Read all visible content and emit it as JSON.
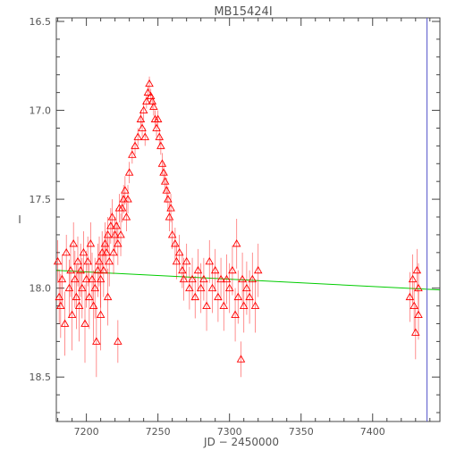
{
  "chart_data": {
    "type": "scatter",
    "title": "MB15424I",
    "xlabel": "JD − 2450000",
    "ylabel": "I",
    "xlim": [
      7179,
      7447
    ],
    "ylim": [
      18.75,
      16.48
    ],
    "y_inverted": true,
    "x_ticks": [
      "7200",
      "7250",
      "7300",
      "7350",
      "7400"
    ],
    "x_tick_values": [
      7200,
      7250,
      7300,
      7350,
      7400
    ],
    "y_ticks": [
      "16.5",
      "17.0",
      "17.5",
      "18.0",
      "18.5"
    ],
    "y_tick_values": [
      16.5,
      17.0,
      17.5,
      18.0,
      18.5
    ],
    "grid": false,
    "colors": {
      "points": "#ff0000",
      "baseline": "#00cc00",
      "vline": "#5555cc",
      "axes": "#444444"
    },
    "baseline": {
      "x": [
        7179,
        7447
      ],
      "y": [
        17.9,
        18.01
      ]
    },
    "vline_x": 7438,
    "points": [
      {
        "x": 7180,
        "y": 17.85,
        "e": 0.12
      },
      {
        "x": 7181,
        "y": 18.05,
        "e": 0.15
      },
      {
        "x": 7182,
        "y": 18.1,
        "e": 0.18
      },
      {
        "x": 7183,
        "y": 17.95,
        "e": 0.14
      },
      {
        "x": 7185,
        "y": 18.2,
        "e": 0.18
      },
      {
        "x": 7186,
        "y": 17.8,
        "e": 0.1
      },
      {
        "x": 7188,
        "y": 18.0,
        "e": 0.16
      },
      {
        "x": 7189,
        "y": 17.9,
        "e": 0.15
      },
      {
        "x": 7190,
        "y": 18.15,
        "e": 0.2
      },
      {
        "x": 7191,
        "y": 17.75,
        "e": 0.12
      },
      {
        "x": 7192,
        "y": 17.95,
        "e": 0.16
      },
      {
        "x": 7193,
        "y": 18.05,
        "e": 0.18
      },
      {
        "x": 7194,
        "y": 17.85,
        "e": 0.14
      },
      {
        "x": 7195,
        "y": 18.1,
        "e": 0.2
      },
      {
        "x": 7196,
        "y": 17.9,
        "e": 0.15
      },
      {
        "x": 7197,
        "y": 18.0,
        "e": 0.17
      },
      {
        "x": 7198,
        "y": 17.8,
        "e": 0.12
      },
      {
        "x": 7199,
        "y": 18.2,
        "e": 0.22
      },
      {
        "x": 7200,
        "y": 17.95,
        "e": 0.16
      },
      {
        "x": 7201,
        "y": 17.85,
        "e": 0.14
      },
      {
        "x": 7202,
        "y": 18.05,
        "e": 0.18
      },
      {
        "x": 7203,
        "y": 17.75,
        "e": 0.12
      },
      {
        "x": 7204,
        "y": 17.95,
        "e": 0.15
      },
      {
        "x": 7205,
        "y": 18.1,
        "e": 0.2
      },
      {
        "x": 7206,
        "y": 18.0,
        "e": 0.17
      },
      {
        "x": 7207,
        "y": 18.3,
        "e": 0.2
      },
      {
        "x": 7208,
        "y": 17.9,
        "e": 0.15
      },
      {
        "x": 7209,
        "y": 17.85,
        "e": 0.14
      },
      {
        "x": 7210,
        "y": 17.95,
        "e": 0.16
      },
      {
        "x": 7211,
        "y": 17.8,
        "e": 0.12
      },
      {
        "x": 7212,
        "y": 17.9,
        "e": 0.15
      },
      {
        "x": 7213,
        "y": 17.75,
        "e": 0.12
      },
      {
        "x": 7214,
        "y": 17.8,
        "e": 0.12
      },
      {
        "x": 7215,
        "y": 17.7,
        "e": 0.1
      },
      {
        "x": 7216,
        "y": 17.85,
        "e": 0.14
      },
      {
        "x": 7217,
        "y": 17.65,
        "e": 0.1
      },
      {
        "x": 7218,
        "y": 17.6,
        "e": 0.1
      },
      {
        "x": 7219,
        "y": 17.8,
        "e": 0.12
      },
      {
        "x": 7220,
        "y": 17.7,
        "e": 0.1
      },
      {
        "x": 7221,
        "y": 17.65,
        "e": 0.1
      },
      {
        "x": 7222,
        "y": 17.75,
        "e": 0.12
      },
      {
        "x": 7223,
        "y": 17.55,
        "e": 0.08
      },
      {
        "x": 7224,
        "y": 17.7,
        "e": 0.12
      },
      {
        "x": 7225,
        "y": 17.55,
        "e": 0.08
      },
      {
        "x": 7226,
        "y": 17.5,
        "e": 0.08
      },
      {
        "x": 7227,
        "y": 17.45,
        "e": 0.08
      },
      {
        "x": 7228,
        "y": 17.6,
        "e": 0.08
      },
      {
        "x": 7229,
        "y": 17.5,
        "e": 0.08
      },
      {
        "x": 7222,
        "y": 18.3,
        "e": 0.12
      },
      {
        "x": 7215,
        "y": 18.05,
        "e": 0.16
      },
      {
        "x": 7210,
        "y": 18.15,
        "e": 0.2
      },
      {
        "x": 7230,
        "y": 17.35,
        "e": 0.06
      },
      {
        "x": 7232,
        "y": 17.25,
        "e": 0.05
      },
      {
        "x": 7234,
        "y": 17.2,
        "e": 0.05
      },
      {
        "x": 7236,
        "y": 17.15,
        "e": 0.05
      },
      {
        "x": 7238,
        "y": 17.05,
        "e": 0.05
      },
      {
        "x": 7239,
        "y": 17.1,
        "e": 0.05
      },
      {
        "x": 7240,
        "y": 17.0,
        "e": 0.05
      },
      {
        "x": 7241,
        "y": 17.15,
        "e": 0.05
      },
      {
        "x": 7242,
        "y": 16.95,
        "e": 0.04
      },
      {
        "x": 7243,
        "y": 16.9,
        "e": 0.04
      },
      {
        "x": 7244,
        "y": 16.85,
        "e": 0.04
      },
      {
        "x": 7245,
        "y": 16.92,
        "e": 0.04
      },
      {
        "x": 7246,
        "y": 16.95,
        "e": 0.04
      },
      {
        "x": 7247,
        "y": 16.98,
        "e": 0.05
      },
      {
        "x": 7248,
        "y": 17.05,
        "e": 0.05
      },
      {
        "x": 7249,
        "y": 17.1,
        "e": 0.05
      },
      {
        "x": 7250,
        "y": 17.05,
        "e": 0.05
      },
      {
        "x": 7251,
        "y": 17.15,
        "e": 0.05
      },
      {
        "x": 7252,
        "y": 17.2,
        "e": 0.05
      },
      {
        "x": 7253,
        "y": 17.3,
        "e": 0.06
      },
      {
        "x": 7254,
        "y": 17.35,
        "e": 0.06
      },
      {
        "x": 7255,
        "y": 17.4,
        "e": 0.06
      },
      {
        "x": 7256,
        "y": 17.45,
        "e": 0.07
      },
      {
        "x": 7257,
        "y": 17.5,
        "e": 0.07
      },
      {
        "x": 7258,
        "y": 17.6,
        "e": 0.08
      },
      {
        "x": 7259,
        "y": 17.55,
        "e": 0.08
      },
      {
        "x": 7260,
        "y": 17.7,
        "e": 0.08
      },
      {
        "x": 7262,
        "y": 17.75,
        "e": 0.09
      },
      {
        "x": 7263,
        "y": 17.85,
        "e": 0.1
      },
      {
        "x": 7265,
        "y": 17.8,
        "e": 0.1
      },
      {
        "x": 7267,
        "y": 17.9,
        "e": 0.1
      },
      {
        "x": 7268,
        "y": 17.95,
        "e": 0.12
      },
      {
        "x": 7270,
        "y": 17.85,
        "e": 0.1
      },
      {
        "x": 7272,
        "y": 18.0,
        "e": 0.12
      },
      {
        "x": 7274,
        "y": 17.95,
        "e": 0.12
      },
      {
        "x": 7276,
        "y": 18.05,
        "e": 0.12
      },
      {
        "x": 7278,
        "y": 17.9,
        "e": 0.12
      },
      {
        "x": 7280,
        "y": 18.0,
        "e": 0.14
      },
      {
        "x": 7282,
        "y": 17.95,
        "e": 0.12
      },
      {
        "x": 7284,
        "y": 18.1,
        "e": 0.14
      },
      {
        "x": 7286,
        "y": 17.85,
        "e": 0.12
      },
      {
        "x": 7288,
        "y": 18.0,
        "e": 0.14
      },
      {
        "x": 7290,
        "y": 17.9,
        "e": 0.12
      },
      {
        "x": 7292,
        "y": 18.05,
        "e": 0.14
      },
      {
        "x": 7294,
        "y": 17.95,
        "e": 0.12
      },
      {
        "x": 7296,
        "y": 18.1,
        "e": 0.14
      },
      {
        "x": 7298,
        "y": 17.95,
        "e": 0.14
      },
      {
        "x": 7300,
        "y": 18.0,
        "e": 0.14
      },
      {
        "x": 7302,
        "y": 17.9,
        "e": 0.14
      },
      {
        "x": 7304,
        "y": 18.15,
        "e": 0.15
      },
      {
        "x": 7305,
        "y": 17.75,
        "e": 0.14
      },
      {
        "x": 7306,
        "y": 18.05,
        "e": 0.15
      },
      {
        "x": 7308,
        "y": 18.4,
        "e": 0.1
      },
      {
        "x": 7309,
        "y": 17.95,
        "e": 0.15
      },
      {
        "x": 7310,
        "y": 18.1,
        "e": 0.15
      },
      {
        "x": 7312,
        "y": 18.0,
        "e": 0.15
      },
      {
        "x": 7314,
        "y": 18.05,
        "e": 0.15
      },
      {
        "x": 7316,
        "y": 17.95,
        "e": 0.15
      },
      {
        "x": 7318,
        "y": 18.1,
        "e": 0.15
      },
      {
        "x": 7320,
        "y": 17.9,
        "e": 0.15
      },
      {
        "x": 7426,
        "y": 18.05,
        "e": 0.14
      },
      {
        "x": 7428,
        "y": 17.95,
        "e": 0.14
      },
      {
        "x": 7429,
        "y": 18.1,
        "e": 0.14
      },
      {
        "x": 7430,
        "y": 18.25,
        "e": 0.15
      },
      {
        "x": 7431,
        "y": 17.9,
        "e": 0.12
      },
      {
        "x": 7432,
        "y": 18.0,
        "e": 0.14
      },
      {
        "x": 7432,
        "y": 18.15,
        "e": 0.14
      }
    ]
  }
}
